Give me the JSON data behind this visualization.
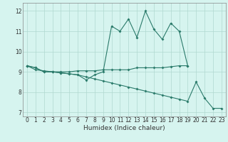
{
  "xlabel": "Humidex (Indice chaleur)",
  "x": [
    0,
    1,
    2,
    3,
    4,
    5,
    6,
    7,
    8,
    9,
    10,
    11,
    12,
    13,
    14,
    15,
    16,
    17,
    18,
    19,
    20,
    21,
    22,
    23
  ],
  "line1": [
    9.3,
    9.2,
    9.0,
    9.0,
    8.95,
    8.9,
    8.85,
    8.6,
    8.85,
    9.0,
    11.25,
    11.0,
    11.6,
    10.7,
    12.0,
    11.1,
    10.6,
    11.4,
    11.0,
    9.3,
    null,
    null,
    null,
    null
  ],
  "line2": [
    9.3,
    9.2,
    9.0,
    9.0,
    9.0,
    9.0,
    9.05,
    9.05,
    9.05,
    9.1,
    9.1,
    9.1,
    9.1,
    9.2,
    9.2,
    9.2,
    9.2,
    9.25,
    9.3,
    9.3,
    null,
    null,
    null,
    null
  ],
  "line3": [
    9.3,
    9.1,
    9.05,
    9.0,
    8.95,
    8.9,
    8.85,
    8.75,
    8.65,
    8.55,
    8.45,
    8.35,
    8.25,
    8.15,
    8.05,
    7.95,
    7.85,
    7.75,
    7.65,
    7.55,
    8.5,
    7.7,
    7.2,
    7.2
  ],
  "color": "#2a7a6a",
  "bg_color": "#d6f4ef",
  "grid_color": "#b0d8d0",
  "ylim": [
    6.8,
    12.4
  ],
  "xlim": [
    -0.5,
    23.5
  ],
  "yticks": [
    7,
    8,
    9,
    10,
    11,
    12
  ],
  "xticks": [
    0,
    1,
    2,
    3,
    4,
    5,
    6,
    7,
    8,
    9,
    10,
    11,
    12,
    13,
    14,
    15,
    16,
    17,
    18,
    19,
    20,
    21,
    22,
    23
  ]
}
